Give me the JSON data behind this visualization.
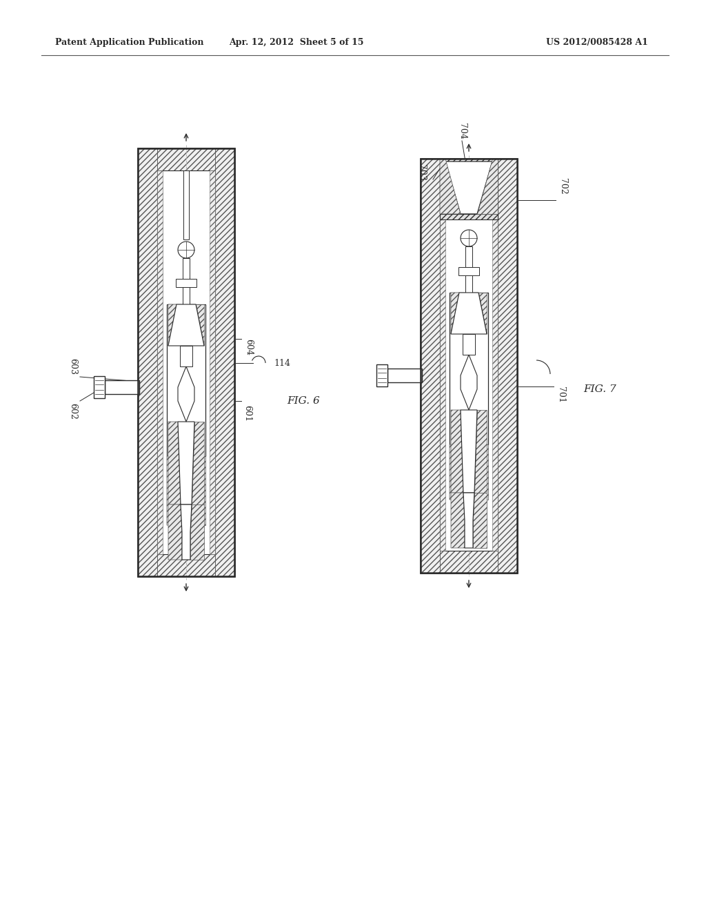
{
  "header_left": "Patent Application Publication",
  "header_center": "Apr. 12, 2012  Sheet 5 of 15",
  "header_right": "US 2012/0085428 A1",
  "fig6_label": "FIG. 6",
  "fig7_label": "FIG. 7",
  "bg_color": "#ffffff",
  "line_color": "#2a2a2a"
}
